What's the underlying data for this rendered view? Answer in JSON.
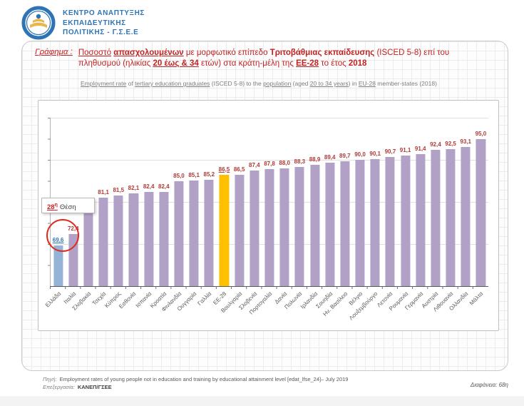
{
  "header": {
    "org_lines": [
      "ΚΕΝΤΡΟ ΑΝΑΠΤΥΞΗΣ",
      "ΕΚΠΑΙΔΕΥΤΙΚΗΣ",
      "ΠΟΛΙΤΙΚΗΣ - Γ.Σ.Ε.Ε"
    ]
  },
  "slide": {
    "title_label": "Γράφημα :",
    "title_segments": [
      {
        "t": "Ποσοστό",
        "u": true
      },
      {
        "t": " "
      },
      {
        "t": "απασχολουμένων",
        "u": true,
        "b": true
      },
      {
        "t": " με μορφωτικό επίπεδο "
      },
      {
        "t": "Τριτοβάθμιας εκπαίδευσης",
        "b": true
      },
      {
        "t": " (ISCED 5-8) επί του πληθυσμού (ηλικίας "
      },
      {
        "t": "20 έως & 34",
        "u": true,
        "b": true
      },
      {
        "t": " ετών) στα κράτη-μέλη της "
      },
      {
        "t": "ΕΕ-28",
        "u": true,
        "b": true
      },
      {
        "t": " το έτος "
      },
      {
        "t": "2018",
        "b": true
      }
    ],
    "subtitle_segments": [
      {
        "t": "Employment rate",
        "u": true
      },
      {
        "t": " of "
      },
      {
        "t": "tertiary education graduates",
        "u": true
      },
      {
        "t": " (ISCED 5-8) to the "
      },
      {
        "t": "population",
        "u": true
      },
      {
        "t": " (aged "
      },
      {
        "t": "20 to 34 years",
        "u": true
      },
      {
        "t": ") in "
      },
      {
        "t": "EU-28",
        "u": true
      },
      {
        "t": " member-states (2018)"
      }
    ],
    "callout": {
      "rank": "28",
      "rank_suffix": "η",
      "text": "Θέση"
    }
  },
  "chart_data": {
    "type": "bar",
    "title": "Ποσοστό απασχολουμένων με μορφωτικό επίπεδο Τριτοβάθμιας εκπαίδευσης (ISCED 5-8) επί του πληθυσμού (ηλικίας 20 έως & 34 ετών) στα κράτη-μέλη της ΕΕ-28 το έτος 2018",
    "categories": [
      "Ελλάδα",
      "Ιταλία",
      "Σλοβακία",
      "Τσεχία",
      "Κύπρος",
      "Εσθονία",
      "Ισπανία",
      "Κροατία",
      "Φινλανδία",
      "Ουγγαρία",
      "Γαλλία",
      "ΕΕ-28",
      "Βουλγαρία",
      "Σλοβενία",
      "Πορτογαλία",
      "Δανία",
      "Πολωνία",
      "Ιρλανδία",
      "Σουηδία",
      "Ην. Βασίλειο",
      "Βέλγιο",
      "Λουξεμβούργο",
      "Λετονία",
      "Ρουμανία",
      "Γερμανία",
      "Αυστρία",
      "Λιθουανία",
      "Ολλανδία",
      "Μάλτα"
    ],
    "values": [
      69.6,
      72.4,
      78.2,
      81.1,
      81.5,
      82.1,
      82.4,
      82.4,
      85.0,
      85.1,
      85.2,
      86.5,
      86.5,
      87.4,
      87.8,
      88.0,
      88.3,
      88.9,
      89.4,
      89.7,
      90.0,
      90.1,
      90.7,
      91.1,
      91.4,
      92.4,
      92.5,
      93.1,
      95.0
    ],
    "xlabel": "",
    "ylabel": "",
    "ylim": [
      60,
      100
    ],
    "gridlines": [
      70,
      80,
      90,
      100
    ],
    "grid": true,
    "legend": false,
    "highlight": {
      "greece_index": 0,
      "eu_index": 11
    },
    "colors": {
      "default": "#b2a1c7",
      "greece": "#95b3d7",
      "eu": "#ffc000",
      "value_label": "#b03a36",
      "greece_label": "#2e75b6"
    }
  },
  "footer": {
    "source_label": "Πηγή:",
    "source_text": "Employment rates of young people not in education and training by educational attainment level [edat_lfse_24]– July 2019",
    "processing_label": "Επεξεργασία:",
    "processing_text": "ΚΑΝΕΠ/ΓΣΕΕ",
    "slide_label": "Διαφάνεια:",
    "slide_number": "68η"
  }
}
